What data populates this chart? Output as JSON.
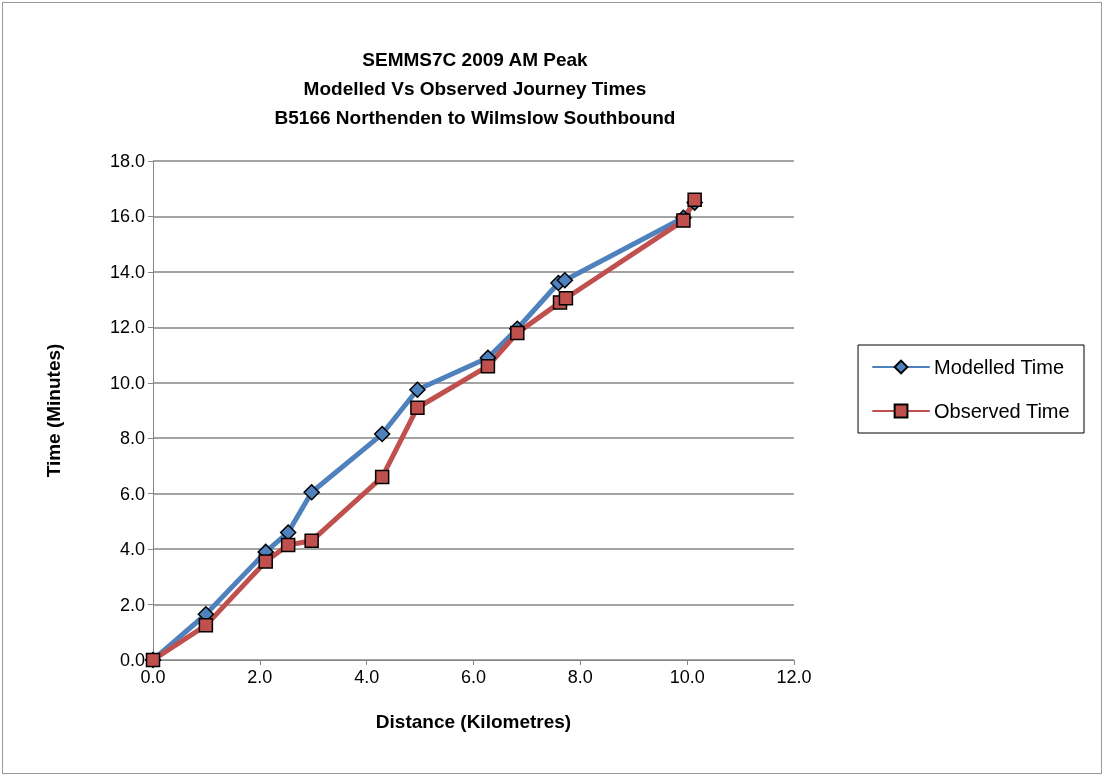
{
  "chart_data": {
    "type": "line",
    "title": "SEMMS7C 2009 AM Peak\nModelled Vs Observed Journey Times\nB5166 Northenden to Wilmslow Southbound",
    "xlabel": "Distance (Kilometres)",
    "ylabel": "Time (Minutes)",
    "series": [
      {
        "name": "Modelled Time",
        "color": "#4f81bd",
        "marker": "diamond",
        "x": [
          0,
          0.99,
          2.11,
          2.53,
          2.97,
          4.29,
          4.95,
          6.27,
          6.82,
          7.59,
          7.71,
          9.93,
          10.14
        ],
        "values": [
          0,
          1.65,
          3.9,
          4.6,
          6.05,
          8.15,
          9.75,
          10.9,
          11.95,
          13.6,
          13.7,
          15.95,
          16.5
        ]
      },
      {
        "name": "Observed Time",
        "color": "#c0504d",
        "marker": "square",
        "x": [
          0,
          0.99,
          2.11,
          2.53,
          2.97,
          4.29,
          4.95,
          6.27,
          6.82,
          7.62,
          7.73,
          9.93,
          10.14
        ],
        "values": [
          0,
          1.25,
          3.55,
          4.15,
          4.3,
          6.6,
          9.1,
          10.6,
          11.8,
          12.9,
          13.05,
          15.85,
          16.6
        ]
      }
    ],
    "xlim": [
      0,
      12
    ],
    "xticks": [
      {
        "value": 0,
        "label": "0.0"
      },
      {
        "value": 2,
        "label": "2.0"
      },
      {
        "value": 4,
        "label": "4.0"
      },
      {
        "value": 6,
        "label": "6.0"
      },
      {
        "value": 8,
        "label": "8.0"
      },
      {
        "value": 10,
        "label": "10.0"
      },
      {
        "value": 12,
        "label": "12.0"
      }
    ],
    "ylim": [
      0,
      18
    ],
    "yticks": [
      {
        "value": 0,
        "label": "0.0"
      },
      {
        "value": 2,
        "label": "2.0"
      },
      {
        "value": 4,
        "label": "4.0"
      },
      {
        "value": 6,
        "label": "6.0"
      },
      {
        "value": 8,
        "label": "8.0"
      },
      {
        "value": 10,
        "label": "10.0"
      },
      {
        "value": 12,
        "label": "12.0"
      },
      {
        "value": 14,
        "label": "14.0"
      },
      {
        "value": 16,
        "label": "16.0"
      },
      {
        "value": 18,
        "label": "18.0"
      }
    ],
    "grid": "y",
    "legend": "right",
    "line_style": "solid"
  }
}
